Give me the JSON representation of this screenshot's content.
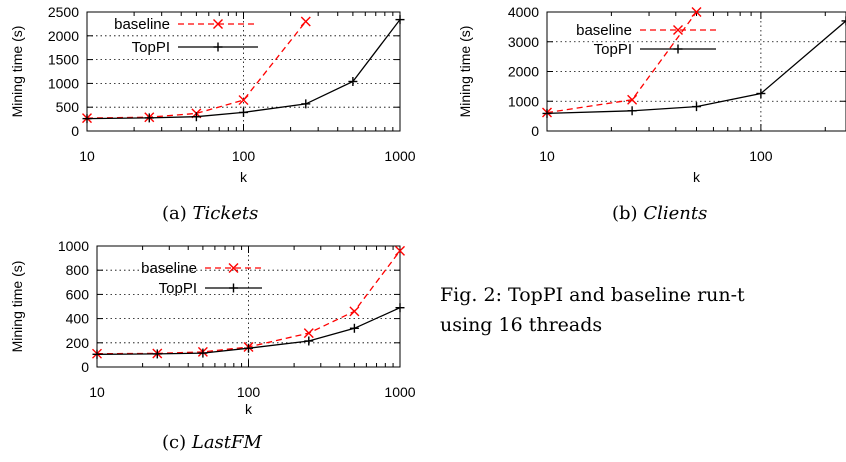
{
  "chart_data": [
    {
      "type": "line",
      "xscale": "log",
      "xlabel": "k",
      "ylabel": "Mining time (s)",
      "xlim": [
        10,
        1000
      ],
      "ylim": [
        0,
        2500
      ],
      "xticks": [
        "10",
        "100",
        "1000"
      ],
      "yticks": [
        "0",
        "500",
        "1000",
        "1500",
        "2000",
        "2500"
      ],
      "grid": "dotted at 100",
      "legend": "top-left",
      "series": [
        {
          "name": "baseline",
          "color": "#ff0000",
          "dash": true,
          "marker": "x",
          "x": [
            10,
            25,
            50,
            100,
            250
          ],
          "values": [
            270,
            290,
            370,
            650,
            2300
          ]
        },
        {
          "name": "TopPI",
          "color": "#000000",
          "dash": false,
          "marker": "+",
          "x": [
            10,
            25,
            50,
            100,
            250,
            500,
            1000
          ],
          "values": [
            260,
            275,
            300,
            390,
            570,
            1040,
            2340
          ]
        }
      ]
    },
    {
      "type": "line",
      "xscale": "log",
      "xlabel": "k",
      "ylabel": "Mining time (s)",
      "xlim": [
        10,
        250
      ],
      "ylim": [
        0,
        4000
      ],
      "xticks": [
        "10",
        "100"
      ],
      "yticks": [
        "0",
        "1000",
        "2000",
        "3000",
        "4000"
      ],
      "grid": "dotted at 100",
      "legend": "top-left",
      "series": [
        {
          "name": "baseline",
          "color": "#ff0000",
          "dash": true,
          "marker": "x",
          "x": [
            10,
            25,
            50
          ],
          "values": [
            620,
            1050,
            4000
          ]
        },
        {
          "name": "TopPI",
          "color": "#000000",
          "dash": false,
          "marker": "+",
          "x": [
            10,
            25,
            50,
            100,
            250
          ],
          "values": [
            590,
            680,
            820,
            1260,
            3700
          ]
        }
      ]
    },
    {
      "type": "line",
      "xscale": "log",
      "xlabel": "k",
      "ylabel": "Mining time (s)",
      "xlim": [
        10,
        1000
      ],
      "ylim": [
        0,
        1000
      ],
      "xticks": [
        "10",
        "100",
        "1000"
      ],
      "yticks": [
        "0",
        "200",
        "400",
        "600",
        "800",
        "1000"
      ],
      "grid": "dotted at 100",
      "legend": "top-left",
      "series": [
        {
          "name": "baseline",
          "color": "#ff0000",
          "dash": true,
          "marker": "x",
          "x": [
            10,
            25,
            50,
            100,
            250,
            500,
            1000
          ],
          "values": [
            110,
            112,
            125,
            165,
            280,
            460,
            960
          ]
        },
        {
          "name": "TopPI",
          "color": "#000000",
          "dash": false,
          "marker": "+",
          "x": [
            10,
            25,
            50,
            100,
            250,
            500,
            1000
          ],
          "values": [
            105,
            108,
            115,
            155,
            215,
            320,
            490
          ]
        }
      ]
    }
  ],
  "captions": {
    "a_label": "(a)",
    "a_name": "Tickets",
    "b_label": "(b)",
    "b_name": "Clients",
    "c_label": "(c)",
    "c_name": "LastFM"
  },
  "figure_caption": {
    "line1": "Fig. 2:  TopPI and baseline run-t",
    "line2": "using 16 threads"
  }
}
